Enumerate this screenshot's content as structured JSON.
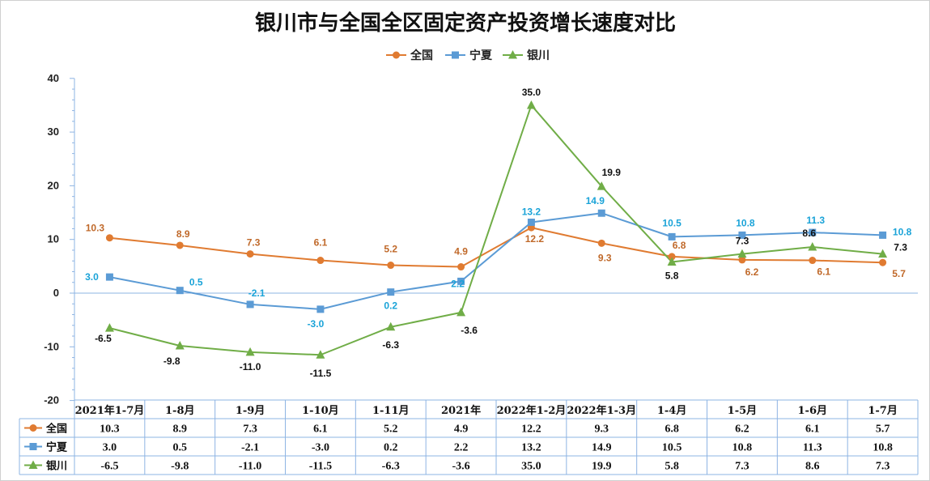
{
  "chart_data": {
    "type": "line",
    "title": "银川市与全国全区固定资产投资增长速度对比",
    "categories": [
      "2021年1-7月",
      "1-8月",
      "1-9月",
      "1-10月",
      "1-11月",
      "2021年",
      "2022年1-2月",
      "2022年1-3月",
      "1-4月",
      "1-5月",
      "1-6月",
      "1-7月"
    ],
    "series": [
      {
        "name": "全国",
        "color": "#E07B31",
        "marker": "circle",
        "label_color": "#C0692A",
        "values": [
          10.3,
          8.9,
          7.3,
          6.1,
          5.2,
          4.9,
          12.2,
          9.3,
          6.8,
          6.2,
          6.1,
          5.7
        ],
        "labels": [
          "10.3",
          "8.9",
          "7.3",
          "6.1",
          "5.2",
          "4.9",
          "12.2",
          "9.3",
          "6.8",
          "6.2",
          "6.1",
          "5.7"
        ]
      },
      {
        "name": "宁夏",
        "color": "#5B9BD5",
        "marker": "square",
        "label_color": "#1AA3D8",
        "values": [
          3.0,
          0.5,
          -2.1,
          -3.0,
          0.2,
          2.2,
          13.2,
          14.9,
          10.5,
          10.8,
          11.3,
          10.8
        ],
        "labels": [
          "3.0",
          "0.5",
          "-2.1",
          "-3.0",
          "0.2",
          "2.2",
          "13.2",
          "14.9",
          "10.5",
          "10.8",
          "11.3",
          "10.8"
        ]
      },
      {
        "name": "银川",
        "color": "#70AD47",
        "marker": "triangle",
        "label_color": "#111111",
        "values": [
          -6.5,
          -9.8,
          -11.0,
          -11.5,
          -6.3,
          -3.6,
          35.0,
          19.9,
          5.8,
          7.3,
          8.6,
          7.3
        ],
        "labels": [
          "-6.5",
          "-9.8",
          "-11.0",
          "-11.5",
          "-6.3",
          "-3.6",
          "35.0",
          "19.9",
          "5.8",
          "7.3",
          "8.6",
          "7.3"
        ]
      }
    ],
    "yticks": [
      "40",
      "30",
      "20",
      "10",
      "0",
      "-10",
      "-20"
    ],
    "ylim": [
      -20,
      40
    ],
    "legend_position": "top-center",
    "data_table": true,
    "grid": false
  }
}
